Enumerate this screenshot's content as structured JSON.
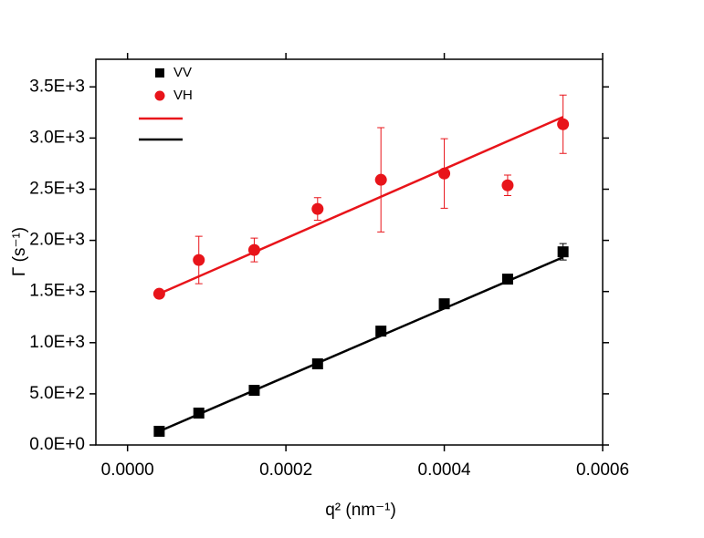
{
  "chart_data": {
    "type": "scatter",
    "xlabel": "q² (nm⁻¹)",
    "ylabel": "Γ (s⁻¹)",
    "xlim": [
      -4e-05,
      0.0006
    ],
    "ylim": [
      0,
      3770
    ],
    "xticks": [
      {
        "value": 0,
        "label": "0.0000"
      },
      0.0002,
      0.0004,
      0.0006
    ],
    "yticks": [
      {
        "value": 0,
        "label": "0.0E+0"
      },
      {
        "value": 500,
        "label": "5.0E+2"
      },
      {
        "value": 1000,
        "label": "1.0E+3"
      },
      {
        "value": 1500,
        "label": "1.5E+3"
      },
      {
        "value": 2000,
        "label": "2.0E+3"
      },
      {
        "value": 2500,
        "label": "2.5E+3"
      },
      {
        "value": 3000,
        "label": "3.0E+3"
      },
      {
        "value": 3500,
        "label": "3.5E+3"
      }
    ],
    "series": [
      {
        "name": "VV",
        "color": "#000000",
        "marker": "square",
        "x": [
          4e-05,
          9e-05,
          0.00016,
          0.00024,
          0.00032,
          0.0004,
          0.00048,
          0.00055
        ],
        "values": [
          134,
          312,
          534,
          793,
          1113,
          1380,
          1621,
          1888
        ],
        "errors": [
          20,
          20,
          20,
          20,
          20,
          20,
          20,
          80
        ]
      },
      {
        "name": "VH",
        "color": "#e8141a",
        "marker": "circle",
        "x": [
          4e-05,
          9e-05,
          0.00016,
          0.00024,
          0.00032,
          0.0004,
          0.00048,
          0.00055
        ],
        "values": [
          1478,
          1808,
          1906,
          2307,
          2592,
          2654,
          2538,
          3135
        ],
        "errors": [
          10,
          232,
          116,
          110,
          510,
          340,
          100,
          285
        ]
      }
    ],
    "fits": [
      {
        "color": "#e8141a",
        "x": [
          4e-05,
          0.00055
        ],
        "values": [
          1478,
          3206
        ]
      },
      {
        "color": "#000000",
        "x": [
          4e-05,
          0.00055
        ],
        "values": [
          134,
          1835
        ]
      }
    ]
  }
}
